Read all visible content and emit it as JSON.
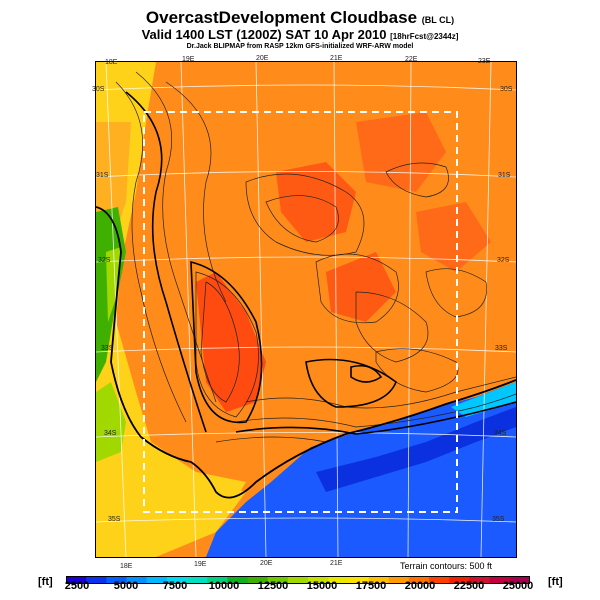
{
  "header": {
    "title": "OvercastDevelopment Cloudbase",
    "title_suffix": "(BL CL)",
    "subtitle": "Valid 1400 LST (1200Z) SAT 10 Apr 2010",
    "subtitle_suffix": "[18hrFcst@2344z]",
    "source_line": "Dr.Jack BLIPMAP from RASP 12km GFS-initialized WRF-ARW model"
  },
  "map": {
    "lon_labels_top": [
      "18E",
      "19E",
      "20E",
      "21E",
      "22E",
      "23E"
    ],
    "lon_labels_bottom": [
      "18E",
      "19E",
      "20E",
      "21E"
    ],
    "lat_labels_left": [
      "30S",
      "31S",
      "32S",
      "33S",
      "34S",
      "35S"
    ],
    "lat_labels_right": [
      "30S",
      "31S",
      "32S",
      "33S",
      "34S",
      "35S"
    ],
    "terrain_note": "Terrain contours: 500 ft"
  },
  "colorbar": {
    "unit": "[ft]",
    "tick_labels": [
      "2500",
      "5000",
      "7500",
      "10000",
      "12500",
      "15000",
      "17500",
      "20000",
      "22500",
      "25000"
    ],
    "colors": [
      "#1a00d8",
      "#0a30f0",
      "#0060ff",
      "#0090ff",
      "#00b8ff",
      "#00d8f0",
      "#00e0c0",
      "#00d080",
      "#10b020",
      "#40b000",
      "#70c800",
      "#a0d800",
      "#c8e000",
      "#e8e800",
      "#ffe000",
      "#ffc000",
      "#ff9a00",
      "#ff7000",
      "#ff4000",
      "#f02000",
      "#d01030",
      "#c00040",
      "#a80050"
    ]
  }
}
